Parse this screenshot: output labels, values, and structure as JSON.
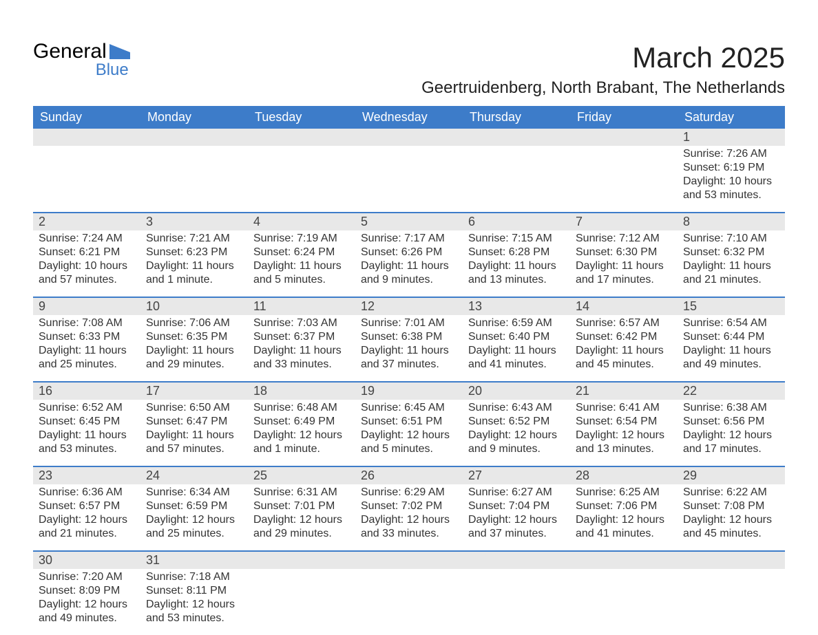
{
  "logo": {
    "top": "General",
    "bottom": "Blue",
    "mark_color": "#3d7cc9"
  },
  "title": "March 2025",
  "location": "Geertruidenberg, North Brabant, The Netherlands",
  "colors": {
    "header_bg": "#3d7cc9",
    "header_text": "#ffffff",
    "datebar_bg": "#e8e8e8",
    "body_text": "#333333",
    "week_divider": "#3d7cc9",
    "page_bg": "#ffffff"
  },
  "typography": {
    "title_size_pt": 32,
    "location_size_pt": 18,
    "header_size_pt": 14,
    "cell_size_pt": 12
  },
  "layout": {
    "columns": 7,
    "rows": 6,
    "week_start": "Sunday"
  },
  "day_names": [
    "Sunday",
    "Monday",
    "Tuesday",
    "Wednesday",
    "Thursday",
    "Friday",
    "Saturday"
  ],
  "weeks": [
    [
      null,
      null,
      null,
      null,
      null,
      null,
      {
        "date": "1",
        "sunrise": "Sunrise: 7:26 AM",
        "sunset": "Sunset: 6:19 PM",
        "daylight1": "Daylight: 10 hours",
        "daylight2": "and 53 minutes."
      }
    ],
    [
      {
        "date": "2",
        "sunrise": "Sunrise: 7:24 AM",
        "sunset": "Sunset: 6:21 PM",
        "daylight1": "Daylight: 10 hours",
        "daylight2": "and 57 minutes."
      },
      {
        "date": "3",
        "sunrise": "Sunrise: 7:21 AM",
        "sunset": "Sunset: 6:23 PM",
        "daylight1": "Daylight: 11 hours",
        "daylight2": "and 1 minute."
      },
      {
        "date": "4",
        "sunrise": "Sunrise: 7:19 AM",
        "sunset": "Sunset: 6:24 PM",
        "daylight1": "Daylight: 11 hours",
        "daylight2": "and 5 minutes."
      },
      {
        "date": "5",
        "sunrise": "Sunrise: 7:17 AM",
        "sunset": "Sunset: 6:26 PM",
        "daylight1": "Daylight: 11 hours",
        "daylight2": "and 9 minutes."
      },
      {
        "date": "6",
        "sunrise": "Sunrise: 7:15 AM",
        "sunset": "Sunset: 6:28 PM",
        "daylight1": "Daylight: 11 hours",
        "daylight2": "and 13 minutes."
      },
      {
        "date": "7",
        "sunrise": "Sunrise: 7:12 AM",
        "sunset": "Sunset: 6:30 PM",
        "daylight1": "Daylight: 11 hours",
        "daylight2": "and 17 minutes."
      },
      {
        "date": "8",
        "sunrise": "Sunrise: 7:10 AM",
        "sunset": "Sunset: 6:32 PM",
        "daylight1": "Daylight: 11 hours",
        "daylight2": "and 21 minutes."
      }
    ],
    [
      {
        "date": "9",
        "sunrise": "Sunrise: 7:08 AM",
        "sunset": "Sunset: 6:33 PM",
        "daylight1": "Daylight: 11 hours",
        "daylight2": "and 25 minutes."
      },
      {
        "date": "10",
        "sunrise": "Sunrise: 7:06 AM",
        "sunset": "Sunset: 6:35 PM",
        "daylight1": "Daylight: 11 hours",
        "daylight2": "and 29 minutes."
      },
      {
        "date": "11",
        "sunrise": "Sunrise: 7:03 AM",
        "sunset": "Sunset: 6:37 PM",
        "daylight1": "Daylight: 11 hours",
        "daylight2": "and 33 minutes."
      },
      {
        "date": "12",
        "sunrise": "Sunrise: 7:01 AM",
        "sunset": "Sunset: 6:38 PM",
        "daylight1": "Daylight: 11 hours",
        "daylight2": "and 37 minutes."
      },
      {
        "date": "13",
        "sunrise": "Sunrise: 6:59 AM",
        "sunset": "Sunset: 6:40 PM",
        "daylight1": "Daylight: 11 hours",
        "daylight2": "and 41 minutes."
      },
      {
        "date": "14",
        "sunrise": "Sunrise: 6:57 AM",
        "sunset": "Sunset: 6:42 PM",
        "daylight1": "Daylight: 11 hours",
        "daylight2": "and 45 minutes."
      },
      {
        "date": "15",
        "sunrise": "Sunrise: 6:54 AM",
        "sunset": "Sunset: 6:44 PM",
        "daylight1": "Daylight: 11 hours",
        "daylight2": "and 49 minutes."
      }
    ],
    [
      {
        "date": "16",
        "sunrise": "Sunrise: 6:52 AM",
        "sunset": "Sunset: 6:45 PM",
        "daylight1": "Daylight: 11 hours",
        "daylight2": "and 53 minutes."
      },
      {
        "date": "17",
        "sunrise": "Sunrise: 6:50 AM",
        "sunset": "Sunset: 6:47 PM",
        "daylight1": "Daylight: 11 hours",
        "daylight2": "and 57 minutes."
      },
      {
        "date": "18",
        "sunrise": "Sunrise: 6:48 AM",
        "sunset": "Sunset: 6:49 PM",
        "daylight1": "Daylight: 12 hours",
        "daylight2": "and 1 minute."
      },
      {
        "date": "19",
        "sunrise": "Sunrise: 6:45 AM",
        "sunset": "Sunset: 6:51 PM",
        "daylight1": "Daylight: 12 hours",
        "daylight2": "and 5 minutes."
      },
      {
        "date": "20",
        "sunrise": "Sunrise: 6:43 AM",
        "sunset": "Sunset: 6:52 PM",
        "daylight1": "Daylight: 12 hours",
        "daylight2": "and 9 minutes."
      },
      {
        "date": "21",
        "sunrise": "Sunrise: 6:41 AM",
        "sunset": "Sunset: 6:54 PM",
        "daylight1": "Daylight: 12 hours",
        "daylight2": "and 13 minutes."
      },
      {
        "date": "22",
        "sunrise": "Sunrise: 6:38 AM",
        "sunset": "Sunset: 6:56 PM",
        "daylight1": "Daylight: 12 hours",
        "daylight2": "and 17 minutes."
      }
    ],
    [
      {
        "date": "23",
        "sunrise": "Sunrise: 6:36 AM",
        "sunset": "Sunset: 6:57 PM",
        "daylight1": "Daylight: 12 hours",
        "daylight2": "and 21 minutes."
      },
      {
        "date": "24",
        "sunrise": "Sunrise: 6:34 AM",
        "sunset": "Sunset: 6:59 PM",
        "daylight1": "Daylight: 12 hours",
        "daylight2": "and 25 minutes."
      },
      {
        "date": "25",
        "sunrise": "Sunrise: 6:31 AM",
        "sunset": "Sunset: 7:01 PM",
        "daylight1": "Daylight: 12 hours",
        "daylight2": "and 29 minutes."
      },
      {
        "date": "26",
        "sunrise": "Sunrise: 6:29 AM",
        "sunset": "Sunset: 7:02 PM",
        "daylight1": "Daylight: 12 hours",
        "daylight2": "and 33 minutes."
      },
      {
        "date": "27",
        "sunrise": "Sunrise: 6:27 AM",
        "sunset": "Sunset: 7:04 PM",
        "daylight1": "Daylight: 12 hours",
        "daylight2": "and 37 minutes."
      },
      {
        "date": "28",
        "sunrise": "Sunrise: 6:25 AM",
        "sunset": "Sunset: 7:06 PM",
        "daylight1": "Daylight: 12 hours",
        "daylight2": "and 41 minutes."
      },
      {
        "date": "29",
        "sunrise": "Sunrise: 6:22 AM",
        "sunset": "Sunset: 7:08 PM",
        "daylight1": "Daylight: 12 hours",
        "daylight2": "and 45 minutes."
      }
    ],
    [
      {
        "date": "30",
        "sunrise": "Sunrise: 7:20 AM",
        "sunset": "Sunset: 8:09 PM",
        "daylight1": "Daylight: 12 hours",
        "daylight2": "and 49 minutes."
      },
      {
        "date": "31",
        "sunrise": "Sunrise: 7:18 AM",
        "sunset": "Sunset: 8:11 PM",
        "daylight1": "Daylight: 12 hours",
        "daylight2": "and 53 minutes."
      },
      null,
      null,
      null,
      null,
      null
    ]
  ]
}
